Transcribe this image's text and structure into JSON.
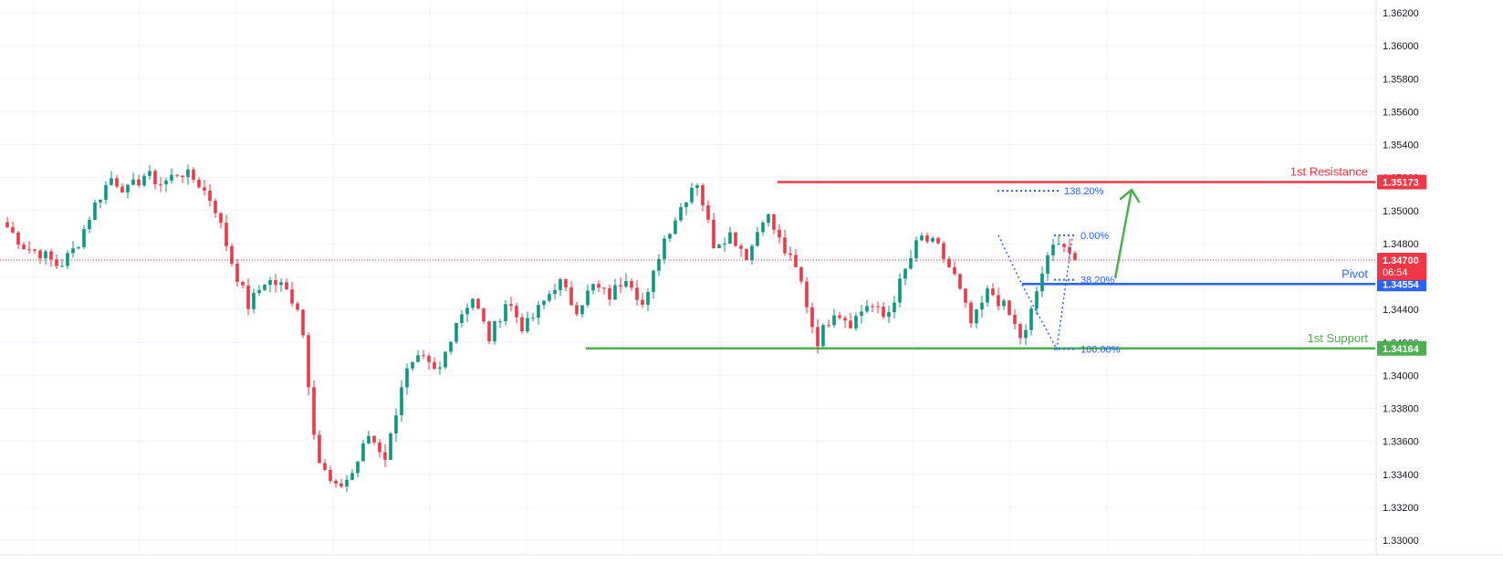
{
  "chart_data": {
    "type": "candlestick",
    "ylim": [
      1.33,
      1.362
    ],
    "y_ticks": [
      "1.36200",
      "1.36000",
      "1.35800",
      "1.35600",
      "1.35400",
      "1.35200",
      "1.35000",
      "1.34800",
      "1.34600",
      "1.34400",
      "1.34200",
      "1.34000",
      "1.33800",
      "1.33600",
      "1.33400",
      "1.33200",
      "1.33000"
    ],
    "grid": true,
    "current_price": {
      "value": 1.347,
      "label": "1.34700",
      "countdown": "06:54",
      "color": "#f23645"
    },
    "levels": [
      {
        "key": "resistance",
        "name": "1st Resistance",
        "value": 1.35173,
        "tag": "1.35173",
        "color": "#f23645"
      },
      {
        "key": "pivot",
        "name": "Pivot",
        "value": 1.34554,
        "tag": "1.34554",
        "color": "#2962ff"
      },
      {
        "key": "support",
        "name": "1st Support",
        "value": 1.34164,
        "tag": "1.34164",
        "color": "#4caf50"
      }
    ],
    "fib_levels": [
      {
        "label": "138.20%",
        "value": 1.3512
      },
      {
        "label": "0.00%",
        "value": 1.3485
      },
      {
        "label": "38.20%",
        "value": 1.3458
      },
      {
        "label": "100.00%",
        "value": 1.3416
      }
    ],
    "candles_note": "",
    "candles": [
      [
        1.349,
        1.3488,
        1.348,
        1.3486,
        1.3475,
        1.3478,
        1.3476,
        1.347,
        1.3474,
        1.3466,
        1.3468,
        1.3462,
        1.347,
        1.3478,
        1.3486,
        1.3496,
        1.3502,
        1.3498,
        1.3504,
        1.3508,
        1.3516,
        1.3512,
        1.3518,
        1.352,
        1.3514,
        1.351,
        1.3516,
        1.3522,
        1.3518,
        1.3514,
        1.351,
        1.352,
        1.3516,
        1.3524,
        1.352,
        1.3518,
        1.3522,
        1.352,
        1.3524,
        1.3518,
        1.3512,
        1.3508,
        1.3504,
        1.349,
        1.348,
        1.3468,
        1.3452,
        1.344,
        1.3446,
        1.3442,
        1.3446,
        1.345,
        1.3454,
        1.3458,
        1.3462,
        1.3458,
        1.3444,
        1.34,
        1.336,
        1.334,
        1.3338,
        1.3342,
        1.3348,
        1.3344,
        1.335,
        1.3358,
        1.3366,
        1.3362,
        1.3354,
        1.338,
        1.3398,
        1.3406,
        1.341,
        1.3404,
        1.341,
        1.3428,
        1.344,
        1.3444,
        1.3452,
        1.3448,
        1.3434,
        1.343,
        1.3424,
        1.3432,
        1.3428,
        1.3432,
        1.344,
        1.3444,
        1.3452,
        1.346,
        1.3444,
        1.3448,
        1.3454,
        1.345,
        1.3446,
        1.3444,
        1.344,
        1.3458,
        1.3474,
        1.348,
        1.3488,
        1.3498,
        1.3476,
        1.3482,
        1.3486,
        1.348,
        1.3478,
        1.3484,
        1.3476,
        1.349,
        1.3498,
        1.3486,
        1.3468,
        1.3448,
        1.343,
        1.3436,
        1.3444,
        1.3446,
        1.344,
        1.3438,
        1.3444,
        1.3438,
        1.3432,
        1.3448,
        1.3466,
        1.3474,
        1.348,
        1.3476,
        1.3482,
        1.347,
        1.3454,
        1.344,
        1.3432,
        1.3438,
        1.3432,
        1.3426,
        1.3438,
        1.3432,
        1.3424,
        1.3436,
        1.3444,
        1.3452,
        1.3464,
        1.3472,
        1.3478,
        1.3462
      ],
      [
        1.3488,
        1.348,
        1.3486,
        1.3475,
        1.3478,
        1.3476,
        1.347,
        1.3474,
        1.3466,
        1.3468,
        1.3462,
        1.347,
        1.3478,
        1.3486,
        1.3496,
        1.3502,
        1.3498,
        1.3504,
        1.3508,
        1.3516,
        1.3512,
        1.3518,
        1.352,
        1.3514,
        1.351,
        1.3516,
        1.3522,
        1.3518,
        1.3514,
        1.351,
        1.352,
        1.3516,
        1.3524,
        1.352,
        1.3518,
        1.3522,
        1.352,
        1.3524,
        1.3518,
        1.3512,
        1.3508,
        1.3504,
        1.349,
        1.348,
        1.3468,
        1.3452,
        1.344,
        1.3446,
        1.3442,
        1.3446,
        1.345,
        1.3454,
        1.3458,
        1.3462,
        1.3458,
        1.3444,
        1.34,
        1.336,
        1.334,
        1.3338,
        1.3342,
        1.3348,
        1.3344,
        1.335,
        1.3358,
        1.3366,
        1.3362,
        1.3354,
        1.338,
        1.3398,
        1.3406,
        1.341,
        1.3404,
        1.341,
        1.3428,
        1.344,
        1.3444,
        1.3452,
        1.3448,
        1.3434,
        1.343,
        1.3424,
        1.3432,
        1.3428,
        1.3432,
        1.344,
        1.3444,
        1.3452,
        1.346,
        1.3444,
        1.3448,
        1.3454,
        1.345,
        1.3446,
        1.3444,
        1.344,
        1.3458,
        1.3474,
        1.348,
        1.3488,
        1.3498,
        1.3518,
        1.3482,
        1.3486,
        1.348,
        1.3478,
        1.3484,
        1.3476,
        1.349,
        1.3498,
        1.3486,
        1.3468,
        1.3448,
        1.342,
        1.3436,
        1.3444,
        1.3446,
        1.344,
        1.3438,
        1.3444,
        1.3438,
        1.3432,
        1.3448,
        1.3466,
        1.3474,
        1.348,
        1.3476,
        1.3482,
        1.3486,
        1.3454,
        1.344,
        1.3432,
        1.3438,
        1.3432,
        1.3426,
        1.3438,
        1.3432,
        1.3424,
        1.342,
        1.3444,
        1.3452,
        1.3464,
        1.3472,
        1.3478,
        1.3484,
        1.347
      ]
    ],
    "path_anchors": [
      [
        1.349,
        1.3478,
        1.3474,
        1.3466,
        1.3478,
        1.3502,
        1.352,
        1.3512,
        1.3522,
        1.3516,
        1.3524,
        1.3518,
        1.3504,
        1.347,
        1.3442,
        1.3458,
        1.3454,
        1.344,
        1.335,
        1.333,
        1.334,
        1.3364,
        1.335,
        1.34,
        1.341,
        1.34,
        1.3432,
        1.3448,
        1.3422,
        1.3446,
        1.3428,
        1.3442,
        1.3458,
        1.344,
        1.3454,
        1.3448,
        1.3462,
        1.344,
        1.348,
        1.35,
        1.352,
        1.348,
        1.3486,
        1.3472,
        1.35,
        1.3478,
        1.346,
        1.342,
        1.344,
        1.3432,
        1.3444,
        1.3434,
        1.346,
        1.3484,
        1.3478,
        1.346,
        1.343,
        1.3452,
        1.344,
        1.342,
        1.346,
        1.3484,
        1.347
      ]
    ]
  },
  "y_axis": {
    "ticks": [
      "1.36200",
      "1.36000",
      "1.35800",
      "1.35600",
      "1.35400",
      "1.35200",
      "1.35000",
      "1.34800",
      "1.34600",
      "1.34400",
      "1.34200",
      "1.34000",
      "1.33800",
      "1.33600",
      "1.33400",
      "1.33200",
      "1.33000"
    ]
  },
  "colors": {
    "up": "#089981",
    "down": "#f23645",
    "grid": "#f0f3fa",
    "axis_text": "#131722",
    "fib": "#2962ff"
  }
}
